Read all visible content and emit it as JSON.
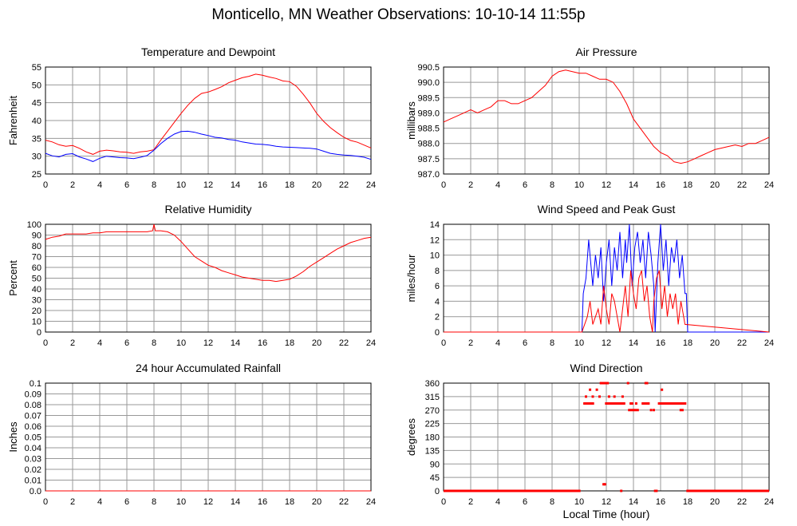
{
  "title": "Monticello, MN Weather Observations: 10-10-14 11:55p",
  "xlabel_global": "Local Time (hour)",
  "colors": {
    "red": "#ff0000",
    "blue": "#0000ff",
    "grid": "#999999"
  },
  "chart_data": [
    {
      "type": "line",
      "title": "Temperature and Dewpoint",
      "ylabel": "Fahrenheit",
      "xlim": [
        0,
        24
      ],
      "ylim": [
        25,
        55
      ],
      "xticks": [
        0,
        2,
        4,
        6,
        8,
        10,
        12,
        14,
        16,
        18,
        20,
        22,
        24
      ],
      "yticks": [
        25,
        30,
        35,
        40,
        45,
        50,
        55
      ],
      "series": [
        {
          "color": "#ff0000",
          "x": [
            0,
            0.5,
            1,
            1.5,
            2,
            2.5,
            3,
            3.5,
            4,
            4.5,
            5,
            5.5,
            6,
            6.5,
            7,
            7.5,
            8,
            8.5,
            9,
            9.5,
            10,
            10.5,
            11,
            11.5,
            12,
            12.5,
            13,
            13.5,
            14,
            14.5,
            15,
            15.5,
            16,
            16.5,
            17,
            17.5,
            18,
            18.5,
            19,
            19.5,
            20,
            20.5,
            21,
            21.5,
            22,
            22.5,
            23,
            23.5,
            24
          ],
          "y": [
            34.5,
            34,
            33.2,
            32.8,
            33,
            32.2,
            31.2,
            30.5,
            31.4,
            31.7,
            31.5,
            31.2,
            31.1,
            30.8,
            31.2,
            31.4,
            31.8,
            34.5,
            37,
            39.5,
            42,
            44.3,
            46.2,
            47.6,
            48,
            48.7,
            49.5,
            50.6,
            51.3,
            52,
            52.4,
            53,
            52.7,
            52.2,
            51.8,
            51.1,
            50.9,
            49.6,
            47.4,
            44.9,
            42,
            39.8,
            38,
            36.6,
            35.3,
            34.4,
            33.9,
            33.1,
            32.3
          ]
        },
        {
          "color": "#0000ff",
          "x": [
            0,
            0.5,
            1,
            1.5,
            2,
            2.5,
            3,
            3.5,
            4,
            4.5,
            5,
            5.5,
            6,
            6.5,
            7,
            7.5,
            8,
            8.5,
            9,
            9.5,
            10,
            10.5,
            11,
            11.5,
            12,
            12.5,
            13,
            13.5,
            14,
            14.5,
            15,
            15.5,
            16,
            16.5,
            17,
            17.5,
            18,
            18.5,
            19,
            19.5,
            20,
            20.5,
            21,
            21.5,
            22,
            22.5,
            23,
            23.5,
            24
          ],
          "y": [
            30.8,
            30.1,
            29.8,
            30.5,
            30.7,
            29.8,
            29.2,
            28.5,
            29.4,
            30,
            29.8,
            29.6,
            29.5,
            29.3,
            29.7,
            30.2,
            31.7,
            33.5,
            35,
            36.2,
            36.9,
            37,
            36.7,
            36.2,
            35.8,
            35.3,
            35.1,
            34.7,
            34.5,
            34,
            33.7,
            33.4,
            33.3,
            33.1,
            32.8,
            32.6,
            32.5,
            32.4,
            32.3,
            32.2,
            32,
            31.4,
            30.8,
            30.5,
            30.3,
            30.2,
            30,
            29.7,
            29.1
          ]
        }
      ]
    },
    {
      "type": "line",
      "title": "Air Pressure",
      "ylabel": "millibars",
      "xlim": [
        0,
        24
      ],
      "ylim": [
        987.0,
        990.5
      ],
      "xticks": [
        0,
        2,
        4,
        6,
        8,
        10,
        12,
        14,
        16,
        18,
        20,
        22,
        24
      ],
      "yticks": [
        "987.0",
        "987.5",
        "988.0",
        "988.5",
        "989.0",
        "989.5",
        "990.0",
        "990.5"
      ],
      "series": [
        {
          "color": "#ff0000",
          "x": [
            0,
            0.5,
            1,
            1.5,
            2,
            2.5,
            3,
            3.5,
            4,
            4.5,
            5,
            5.5,
            6,
            6.5,
            7,
            7.5,
            8,
            8.5,
            9,
            9.5,
            10,
            10.5,
            11,
            11.5,
            12,
            12.5,
            13,
            13.5,
            14,
            14.5,
            15,
            15.5,
            16,
            16.5,
            17,
            17.5,
            18,
            18.5,
            19,
            19.5,
            20,
            20.5,
            21,
            21.5,
            22,
            22.5,
            23,
            23.5,
            24
          ],
          "y": [
            988.7,
            988.8,
            988.9,
            989.0,
            989.1,
            989.0,
            989.1,
            989.2,
            989.4,
            989.4,
            989.3,
            989.3,
            989.4,
            989.5,
            989.7,
            989.9,
            990.2,
            990.35,
            990.4,
            990.35,
            990.3,
            990.3,
            990.2,
            990.1,
            990.1,
            990.0,
            989.7,
            989.3,
            988.8,
            988.5,
            988.2,
            987.9,
            987.7,
            987.6,
            987.4,
            987.35,
            987.4,
            987.5,
            987.6,
            987.7,
            987.8,
            987.85,
            987.9,
            987.95,
            987.9,
            988.0,
            988.0,
            988.1,
            988.2
          ]
        }
      ]
    },
    {
      "type": "line",
      "title": "Relative Humidity",
      "ylabel": "Percent",
      "xlim": [
        0,
        24
      ],
      "ylim": [
        0,
        100
      ],
      "xticks": [
        0,
        2,
        4,
        6,
        8,
        10,
        12,
        14,
        16,
        18,
        20,
        22,
        24
      ],
      "yticks": [
        0,
        10,
        20,
        30,
        40,
        50,
        60,
        70,
        80,
        90,
        100
      ],
      "series": [
        {
          "color": "#ff0000",
          "x": [
            0,
            0.5,
            1,
            1.5,
            2,
            2.5,
            3,
            3.5,
            4,
            4.5,
            5,
            5.5,
            6,
            6.5,
            7,
            7.5,
            7.9,
            8,
            8.1,
            8.5,
            9,
            9.5,
            10,
            10.5,
            11,
            11.5,
            12,
            12.5,
            13,
            13.5,
            14,
            14.5,
            15,
            15.5,
            16,
            16.5,
            17,
            17.5,
            18,
            18.5,
            19,
            19.5,
            20,
            20.5,
            21,
            21.5,
            22,
            22.5,
            23,
            23.5,
            24
          ],
          "y": [
            86,
            88,
            89,
            91,
            91,
            91,
            91,
            92,
            92,
            93,
            93,
            93,
            93,
            93,
            93,
            93,
            94,
            100,
            94,
            94,
            93,
            90,
            84,
            77,
            70,
            66,
            62,
            60,
            57,
            55,
            53,
            51,
            50,
            49,
            48,
            48,
            47,
            48,
            49,
            52,
            56,
            61,
            65,
            69,
            73,
            77,
            80,
            83,
            85,
            87,
            88
          ]
        }
      ]
    },
    {
      "type": "line",
      "title": "Wind Speed and Peak Gust",
      "ylabel": "miles/hour",
      "xlim": [
        0,
        24
      ],
      "ylim": [
        0,
        14
      ],
      "xticks": [
        0,
        2,
        4,
        6,
        8,
        10,
        12,
        14,
        16,
        18,
        20,
        22,
        24
      ],
      "yticks": [
        0,
        2,
        4,
        6,
        8,
        10,
        12,
        14
      ],
      "series": [
        {
          "color": "#0000ff",
          "x": [
            0,
            10.2,
            10.3,
            10.5,
            10.7,
            10.9,
            11,
            11.2,
            11.4,
            11.6,
            11.8,
            12,
            12.2,
            12.4,
            12.6,
            12.8,
            13,
            13.2,
            13.4,
            13.5,
            13.7,
            13.9,
            14.1,
            14.3,
            14.5,
            14.7,
            14.9,
            15.1,
            15.3,
            15.5,
            15.6,
            15.8,
            16,
            16.2,
            16.4,
            16.6,
            16.8,
            17,
            17.2,
            17.4,
            17.6,
            17.8,
            17.9,
            18,
            24
          ],
          "y": [
            0,
            0,
            5,
            7,
            12,
            8,
            6,
            10,
            7,
            11,
            4,
            9,
            12,
            6,
            11,
            8,
            13,
            7,
            12,
            9,
            14,
            6,
            11,
            13,
            9,
            12,
            7,
            13,
            10,
            6,
            0,
            9,
            14,
            8,
            12,
            6,
            11,
            9,
            12,
            7,
            10,
            5,
            5,
            0,
            0
          ]
        },
        {
          "color": "#ff0000",
          "x": [
            0,
            10.2,
            10.4,
            10.6,
            10.8,
            11,
            11.2,
            11.4,
            11.6,
            11.8,
            12,
            12.2,
            12.4,
            12.6,
            12.8,
            13,
            13.2,
            13.4,
            13.6,
            13.8,
            14,
            14.2,
            14.4,
            14.6,
            14.8,
            15,
            15.2,
            15.4,
            15.5,
            15.7,
            15.9,
            16.1,
            16.3,
            16.5,
            16.7,
            16.9,
            17.1,
            17.3,
            17.5,
            17.7,
            17.8,
            24
          ],
          "y": [
            0,
            0,
            1,
            2,
            4,
            1,
            2,
            3,
            1,
            6,
            3,
            1,
            5,
            4,
            2,
            0,
            3,
            6,
            2,
            8,
            5,
            3,
            7,
            8,
            4,
            6,
            2,
            0,
            4,
            7,
            8,
            3,
            6,
            2,
            5,
            3,
            5,
            1,
            4,
            2,
            1,
            0
          ]
        }
      ]
    },
    {
      "type": "line",
      "title": "24 hour Accumulated Rainfall",
      "ylabel": "Inches",
      "xlim": [
        0,
        24
      ],
      "ylim": [
        0,
        0.1
      ],
      "xticks": [
        0,
        2,
        4,
        6,
        8,
        10,
        12,
        14,
        16,
        18,
        20,
        22,
        24
      ],
      "yticks": [
        "0.0",
        "0.01",
        "0.02",
        "0.03",
        "0.04",
        "0.05",
        "0.06",
        "0.07",
        "0.08",
        "0.09",
        "0.1"
      ],
      "series": [
        {
          "color": "#ff0000",
          "x": [
            0,
            24
          ],
          "y": [
            0,
            0
          ]
        }
      ]
    },
    {
      "type": "scatter",
      "title": "Wind Direction",
      "ylabel": "degrees",
      "xlim": [
        0,
        24
      ],
      "ylim": [
        0,
        360
      ],
      "xticks": [
        0,
        2,
        4,
        6,
        8,
        10,
        12,
        14,
        16,
        18,
        20,
        22,
        24
      ],
      "yticks": [
        0,
        45,
        90,
        135,
        180,
        225,
        270,
        315,
        360
      ],
      "series": [
        {
          "color": "#ff0000",
          "segments": [
            {
              "x0": 0,
              "x1": 10.1,
              "y": 0
            },
            {
              "x0": 17.9,
              "x1": 24,
              "y": 0
            },
            {
              "x0": 10.3,
              "x1": 11.1,
              "y": 292
            },
            {
              "x0": 11.9,
              "x1": 13.4,
              "y": 292
            },
            {
              "x0": 14.6,
              "x1": 15.2,
              "y": 292
            },
            {
              "x0": 15.8,
              "x1": 17.9,
              "y": 292
            },
            {
              "x0": 13.6,
              "x1": 14.4,
              "y": 270
            },
            {
              "x0": 17.4,
              "x1": 17.7,
              "y": 270
            }
          ],
          "x": [
            10.5,
            10.8,
            11.0,
            11.3,
            11.5,
            11.6,
            11.7,
            11.8,
            11.9,
            12.0,
            12.1,
            12.2,
            11.8,
            11.9,
            12.4,
            12.6,
            13.2,
            13.6,
            13.9,
            14.2,
            14.9,
            15.0,
            15.3,
            15.5,
            15.7,
            16.1,
            13.1,
            15.6,
            13.8
          ],
          "y": [
            315,
            338,
            315,
            338,
            315,
            360,
            360,
            360,
            360,
            360,
            360,
            315,
            22,
            22,
            292,
            315,
            315,
            360,
            292,
            292,
            360,
            360,
            270,
            270,
            0,
            338,
            0,
            0,
            292
          ]
        }
      ]
    }
  ]
}
